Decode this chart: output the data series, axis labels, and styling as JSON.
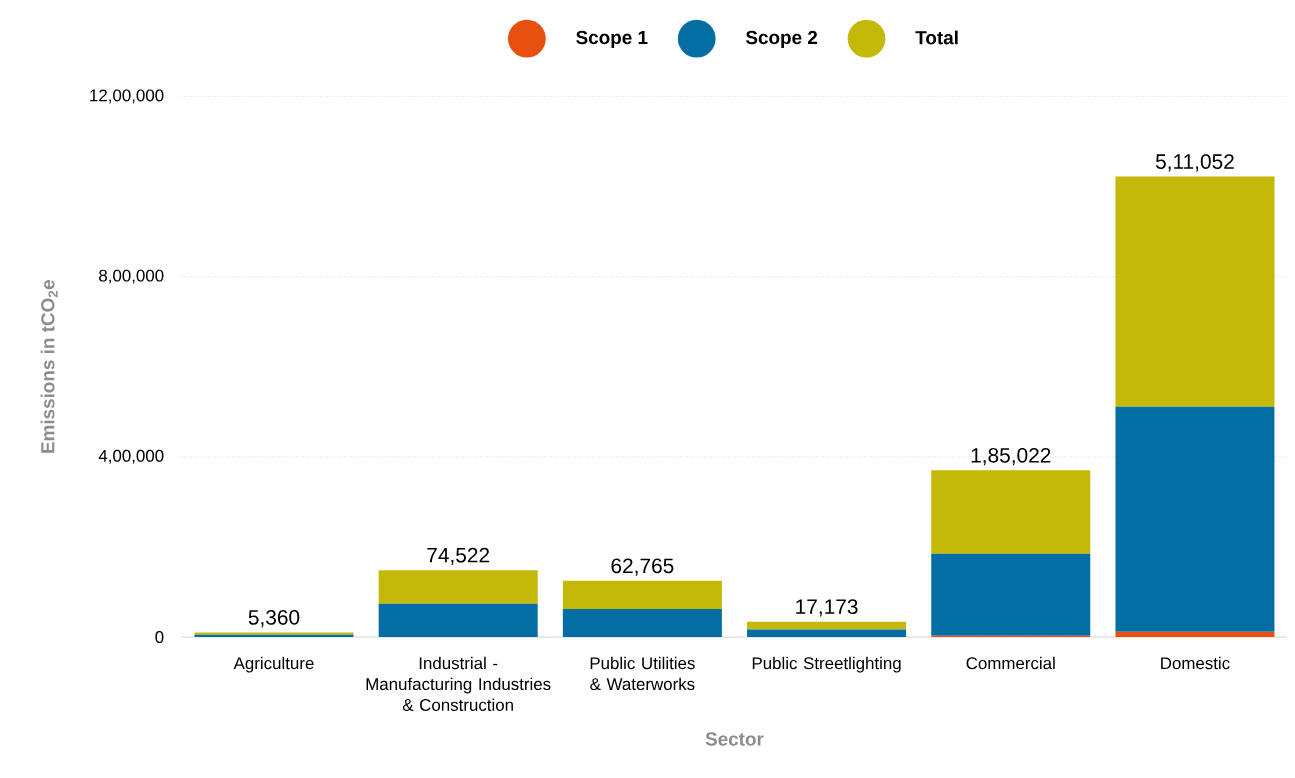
{
  "chart_data": {
    "type": "bar",
    "stacked": true,
    "xlabel": "Sector",
    "ylabel": "Emissions in tCO$_{2}$e",
    "categories": [
      "Agriculture",
      "Industrial - Manufacturing Industries & Construction",
      "Public Utilities & Waterworks",
      "Public Streetlighting",
      "Commercial",
      "Domestic"
    ],
    "series": [
      {
        "name": "Scope 1",
        "color": "#e8500f",
        "values": [
          0,
          0,
          0,
          0,
          3000,
          12000
        ]
      },
      {
        "name": "Scope 2",
        "color": "#026ea3",
        "values": [
          5000,
          74000,
          62000,
          17000,
          182000,
          499000
        ]
      },
      {
        "name": "Total",
        "color": "#c4b808",
        "values": [
          5360,
          74522,
          62765,
          17173,
          185022,
          511052
        ],
        "value_labels": [
          "5,360",
          "74,522",
          "62,765",
          "17,173",
          "1,85,022",
          "5,11,052"
        ]
      }
    ],
    "ylim": [
      0,
      1200000
    ],
    "yticks": [
      0,
      {
        "value": 400000,
        "label": "4,00,000"
      },
      {
        "value": 800000,
        "label": "8,00,000"
      },
      {
        "value": 1200000,
        "label": "12,00,000"
      }
    ],
    "grid": "y",
    "legend": "top"
  }
}
